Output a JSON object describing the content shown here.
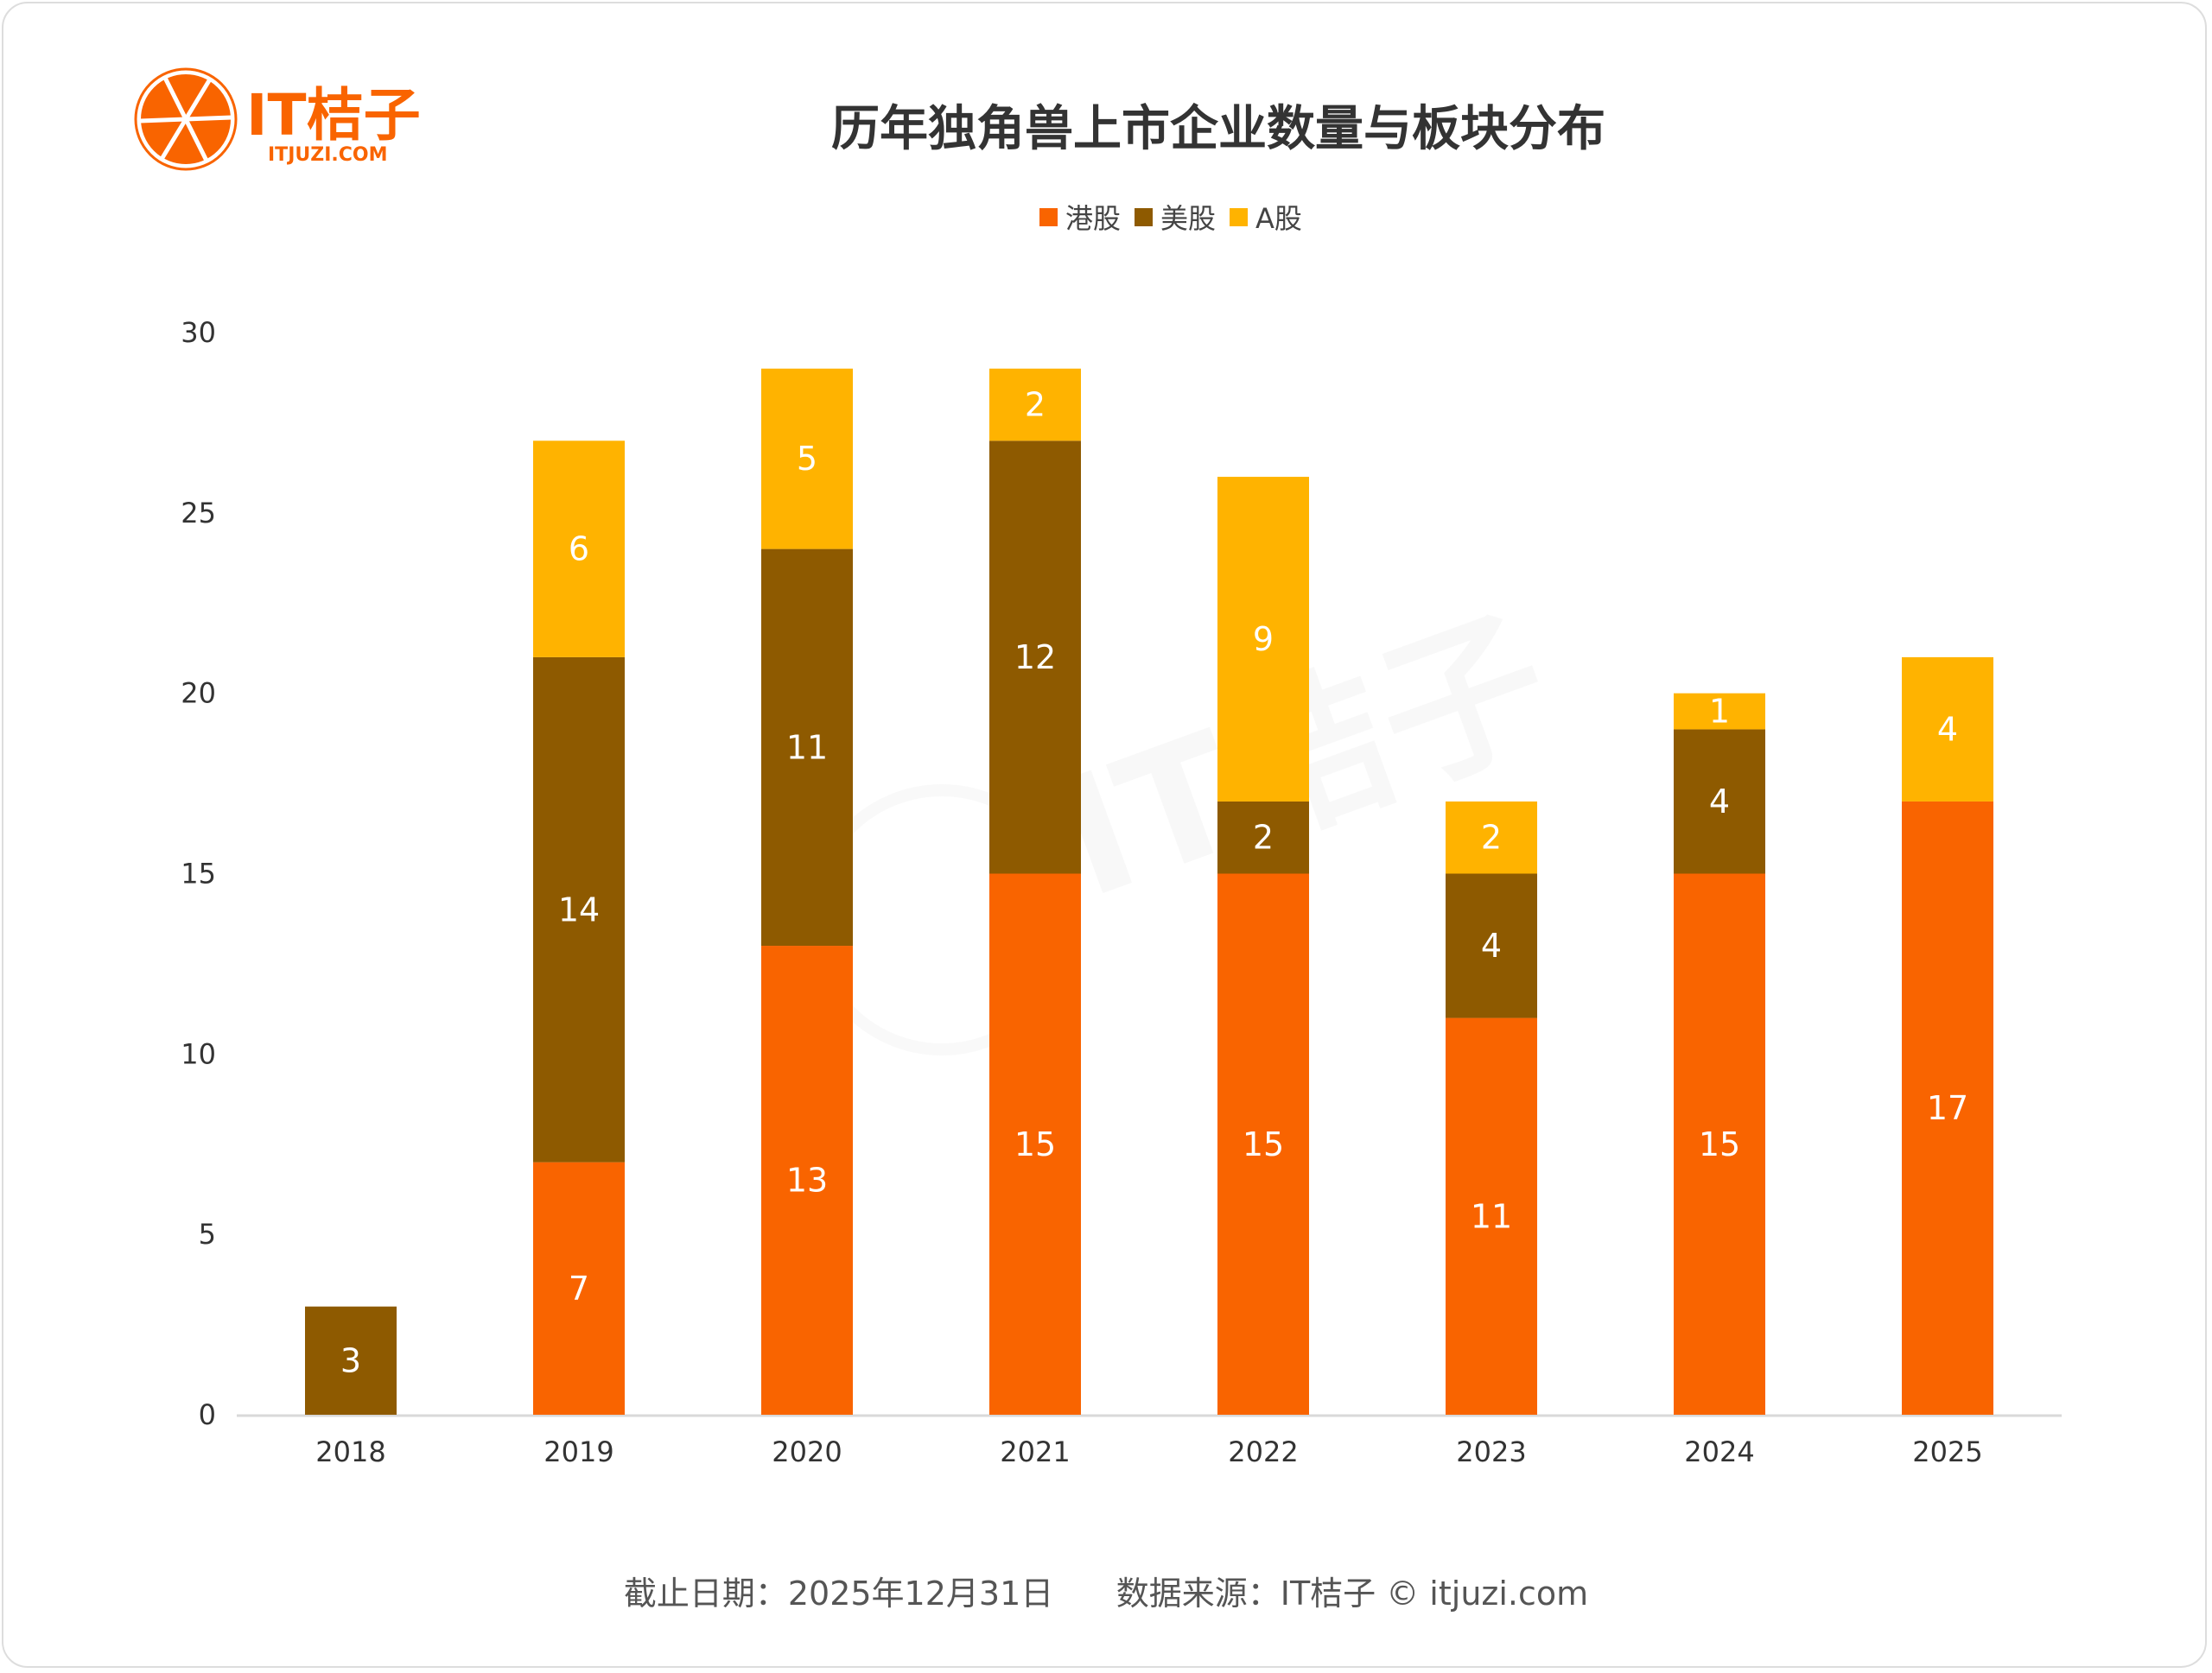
{
  "logo": {
    "name": "IT桔子",
    "sub": "ITJUZI.COM"
  },
  "footer": "截止日期：2025年12月31日      数据来源：IT桔子 © itjuzi.com",
  "colors": {
    "hk": "#F96400",
    "us": "#8E5A00",
    "a": "#FFB300"
  },
  "chart_data": {
    "type": "bar",
    "stacked": true,
    "title": "历年独角兽上市企业数量与板块分布",
    "categories": [
      "2018",
      "2019",
      "2020",
      "2021",
      "2022",
      "2023",
      "2024",
      "2025"
    ],
    "series": [
      {
        "name": "港股",
        "values": [
          0,
          7,
          13,
          15,
          15,
          11,
          15,
          17
        ]
      },
      {
        "name": "美股",
        "values": [
          3,
          14,
          11,
          12,
          2,
          4,
          4,
          0
        ]
      },
      {
        "name": "A股",
        "values": [
          0,
          6,
          5,
          2,
          9,
          2,
          1,
          4
        ]
      }
    ],
    "ylim": [
      0,
      30
    ],
    "yticks": [
      0,
      5,
      10,
      15,
      20,
      25,
      30
    ],
    "grid": false,
    "legend": "top-center",
    "xlabel": "",
    "ylabel": ""
  }
}
